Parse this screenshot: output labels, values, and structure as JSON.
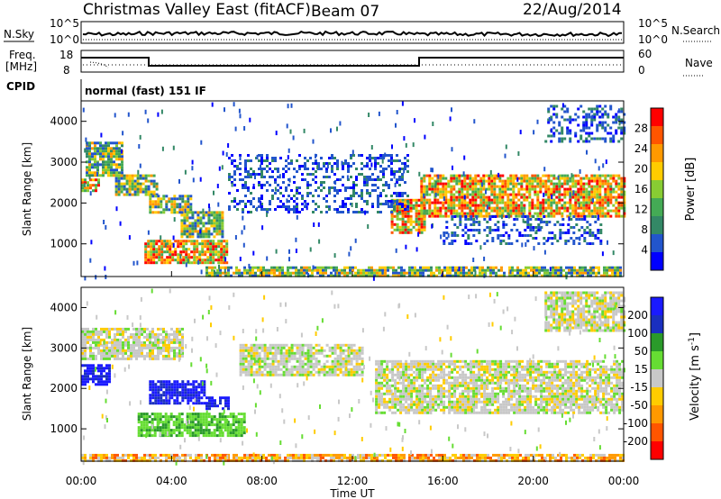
{
  "header": {
    "title": "Christmas Valley East (fitACF)",
    "beam": "Beam 07",
    "date": "22/Aug/2014"
  },
  "nsky_panel": {
    "left_label": "N.Sky",
    "right_label": "N.Search",
    "left_ticks": [
      "10^5",
      "10^0"
    ],
    "right_ticks": [
      "10^5",
      "10^0"
    ]
  },
  "freq_panel": {
    "left_label_1": "Freq.",
    "left_label_2": "[MHz]",
    "left_ticks": [
      "18",
      "8"
    ],
    "right_label": "Nave",
    "right_ticks": [
      "60",
      "0"
    ]
  },
  "cpid": {
    "label": "CPID",
    "mode": "normal (fast) 151 IF"
  },
  "colors": {
    "power_scale": [
      "#0000ff",
      "#2255cc",
      "#338866",
      "#44aa55",
      "#88cc33",
      "#ffcc00",
      "#ff9900",
      "#ff5500",
      "#ff0000"
    ],
    "velocity_scale": [
      "#1a1aff",
      "#1a2fbf",
      "#2a9a2a",
      "#66dd33",
      "#c8c8c8",
      "#ffcc00",
      "#ff9900",
      "#ff5500",
      "#ff0000"
    ]
  },
  "chart_data": [
    {
      "type": "heatmap",
      "name": "power",
      "ylabel": "Slant Range [km]",
      "yticks": [
        "1000",
        "2000",
        "3000",
        "4000"
      ],
      "ylim": [
        200,
        4500
      ],
      "colorbar_label": "Power [dB]",
      "colorbar_ticks": [
        "28",
        "24",
        "20",
        "16",
        "12",
        "8",
        "4"
      ],
      "xticks": [
        "00:00",
        "04:00",
        "08:00",
        "12:00",
        "16:00",
        "20:00",
        "00:00"
      ],
      "xlim_hours": [
        0,
        24
      ],
      "regions": [
        {
          "t0": 0.2,
          "t1": 1.8,
          "r0": 2700,
          "r1": 3500,
          "level": "mid"
        },
        {
          "t0": 0.0,
          "t1": 0.8,
          "r0": 2300,
          "r1": 2600,
          "level": "high"
        },
        {
          "t0": 1.5,
          "t1": 3.3,
          "r0": 2200,
          "r1": 2700,
          "level": "mid"
        },
        {
          "t0": 3.0,
          "t1": 4.8,
          "r0": 1800,
          "r1": 2200,
          "level": "mid"
        },
        {
          "t0": 4.4,
          "t1": 6.3,
          "r0": 1200,
          "r1": 1800,
          "level": "mid"
        },
        {
          "t0": 2.8,
          "t1": 6.5,
          "r0": 550,
          "r1": 1100,
          "level": "high"
        },
        {
          "t0": 5.5,
          "t1": 23.8,
          "r0": 250,
          "r1": 450,
          "level": "mid"
        },
        {
          "t0": 13.7,
          "t1": 15.2,
          "r0": 1300,
          "r1": 2100,
          "level": "high"
        },
        {
          "t0": 15.0,
          "t1": 24.0,
          "r0": 1700,
          "r1": 2700,
          "level": "high"
        },
        {
          "t0": 6.5,
          "t1": 14.5,
          "r0": 1800,
          "r1": 3200,
          "level": "low"
        },
        {
          "t0": 16.0,
          "t1": 23.0,
          "r0": 1000,
          "r1": 1700,
          "level": "low"
        },
        {
          "t0": 20.5,
          "t1": 24.0,
          "r0": 3500,
          "r1": 4400,
          "level": "low"
        }
      ]
    },
    {
      "type": "heatmap",
      "name": "velocity",
      "ylabel": "Slant Range [km]",
      "yticks": [
        "1000",
        "2000",
        "3000",
        "4000"
      ],
      "ylim": [
        200,
        4500
      ],
      "colorbar_label": "Velocity [m s^-1]",
      "colorbar_ticks": [
        "200",
        "100",
        "50",
        "15",
        "-15",
        "-50",
        "-100",
        "-200"
      ],
      "xticks": [
        "00:00",
        "04:00",
        "08:00",
        "12:00",
        "16:00",
        "20:00",
        "00:00"
      ],
      "xlabel": "Time UT",
      "xlim_hours": [
        0,
        24
      ],
      "regions": [
        {
          "t0": 0.0,
          "t1": 4.5,
          "r0": 2700,
          "r1": 3500,
          "vel": "zero"
        },
        {
          "t0": 0.0,
          "t1": 1.2,
          "r0": 2100,
          "r1": 2600,
          "vel": "vpos"
        },
        {
          "t0": 3.0,
          "t1": 5.5,
          "r0": 1600,
          "r1": 2200,
          "vel": "vpos"
        },
        {
          "t0": 5.5,
          "t1": 6.5,
          "r0": 1500,
          "r1": 1800,
          "vel": "vpos"
        },
        {
          "t0": 2.5,
          "t1": 7.2,
          "r0": 800,
          "r1": 1400,
          "vel": "pos"
        },
        {
          "t0": 0.0,
          "t1": 24.0,
          "r0": 230,
          "r1": 380,
          "vel": "neg"
        },
        {
          "t0": 13.0,
          "t1": 24.0,
          "r0": 1400,
          "r1": 2700,
          "vel": "zero"
        },
        {
          "t0": 7.0,
          "t1": 12.5,
          "r0": 2300,
          "r1": 3100,
          "vel": "zero"
        },
        {
          "t0": 20.5,
          "t1": 24.0,
          "r0": 3400,
          "r1": 4400,
          "vel": "zero"
        }
      ]
    }
  ]
}
